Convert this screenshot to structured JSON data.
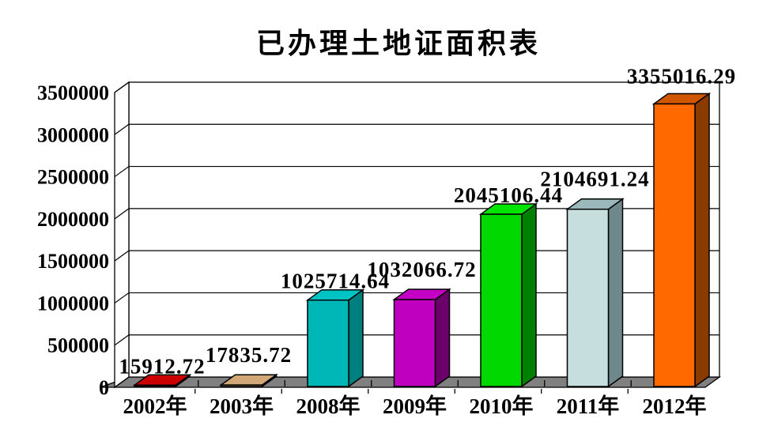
{
  "chart_data": {
    "type": "bar",
    "style": "3d-bars",
    "title": "已办理土地证面积表",
    "xlabel": "",
    "ylabel": "",
    "legend": "none",
    "grid": true,
    "categories": [
      "2002年",
      "2003年",
      "2008年",
      "2009年",
      "2010年",
      "2011年",
      "2012年"
    ],
    "values": [
      15912.72,
      17835.72,
      1025714.64,
      1032066.72,
      2045106.44,
      2104691.24,
      3355016.29
    ],
    "value_labels": [
      "15912.72",
      "17835.72",
      "1025714.64",
      "1032066.72",
      "2045106.44",
      "2104691.24",
      "3355016.29"
    ],
    "ylim": [
      0,
      3500000
    ],
    "y_ticks": [
      0,
      500000,
      1000000,
      1500000,
      2000000,
      2500000,
      3000000,
      3500000
    ],
    "y_tick_labels": [
      "0",
      "500000",
      "1000000",
      "1500000",
      "2000000",
      "2500000",
      "3000000",
      "3500000"
    ],
    "bar_colors": [
      {
        "face": "#cc0000",
        "top": "#cc0000",
        "side": "#7f1010"
      },
      {
        "face": "#d2a878",
        "top": "#d2a878",
        "side": "#8f6f4a"
      },
      {
        "face": "#00b7b7",
        "top": "#00c4c4",
        "side": "#007f7f"
      },
      {
        "face": "#bf00bf",
        "top": "#c400c4",
        "side": "#6b006b"
      },
      {
        "face": "#00d800",
        "top": "#00e400",
        "side": "#008000"
      },
      {
        "face": "#c6dede",
        "top": "#9bb9bc",
        "side": "#6f888b"
      },
      {
        "face": "#ff6900",
        "top": "#d15600",
        "side": "#8b3a00"
      }
    ],
    "floor_color": "#808080",
    "wall_color": "#ffffff",
    "axis_color": "#000000",
    "text_color": "#000000"
  }
}
